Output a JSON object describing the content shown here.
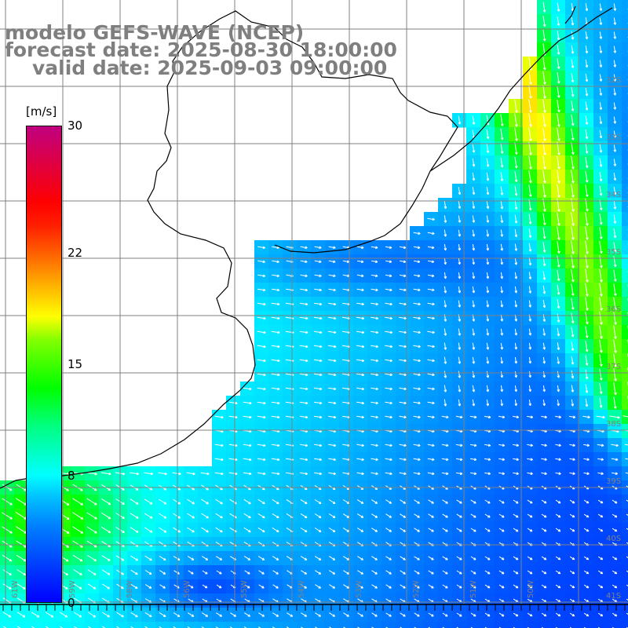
{
  "title": {
    "model": "modelo GEFS-WAVE (NCEP)",
    "forecast": "forecast date: 2025-08-30 18:00:00",
    "valid": "valid date: 2025-09-03 09:00:00"
  },
  "colorbar": {
    "unit": "[m/s]",
    "min": 0,
    "max": 30,
    "ticks": [
      {
        "label": "30",
        "value": 30
      },
      {
        "label": "22",
        "value": 22
      },
      {
        "label": "15",
        "value": 15
      },
      {
        "label": "8",
        "value": 8
      },
      {
        "label": "0",
        "value": 0
      }
    ],
    "stops": [
      "#0000ff",
      "#0080ff",
      "#00ffff",
      "#00ff00",
      "#ffff00",
      "#ff6000",
      "#ff0000",
      "#c00080"
    ]
  },
  "map": {
    "lat_labels": [
      "32S",
      "33S",
      "34S",
      "35S",
      "36S",
      "37S",
      "38S",
      "39S",
      "40S",
      "41S"
    ],
    "lon_labels": [
      "61W",
      "59W",
      "58W",
      "56W",
      "55W",
      "54W",
      "53W",
      "52W",
      "51W",
      "50W"
    ],
    "colors": {
      "land": "#ffffff",
      "coastline": "#000000",
      "grid": "#808080",
      "arrows": "#ffffff",
      "labels": "#808080"
    }
  }
}
